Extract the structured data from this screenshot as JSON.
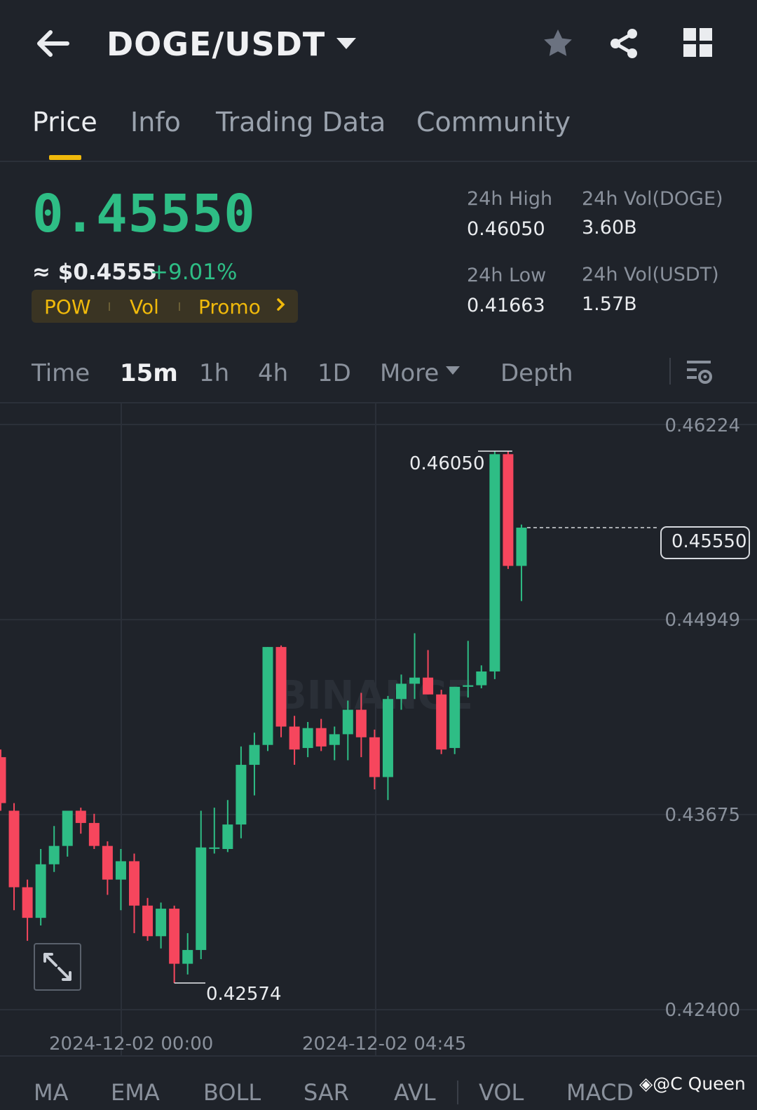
{
  "header": {
    "pair": "DOGE/USDT",
    "icons": [
      "back-arrow-icon",
      "dropdown-caret-icon",
      "star-icon",
      "share-icon",
      "grid-icon"
    ]
  },
  "tabs": [
    {
      "label": "Price",
      "active": true
    },
    {
      "label": "Info",
      "active": false
    },
    {
      "label": "Trading Data",
      "active": false
    },
    {
      "label": "Community",
      "active": false
    }
  ],
  "ticker": {
    "last_price": "0.45550",
    "approx_usd": "≈ $0.4555",
    "change_pct": "+9.01%",
    "tags": [
      "POW",
      "Vol",
      "Promo"
    ],
    "high_label": "24h High",
    "high_value": "0.46050",
    "low_label": "24h Low",
    "low_value": "0.41663",
    "vol_base_label": "24h Vol(DOGE)",
    "vol_base_value": "3.60B",
    "vol_quote_label": "24h Vol(USDT)",
    "vol_quote_value": "1.57B",
    "up_color": "#2ebd85",
    "down_color": "#f6465d",
    "accent_color": "#f0b90b"
  },
  "intervals": {
    "items": [
      "Time",
      "15m",
      "1h",
      "4h",
      "1D"
    ],
    "active": "15m",
    "more_label": "More",
    "depth_label": "Depth"
  },
  "chart_data": {
    "type": "candlestick",
    "y_ticks": [
      "0.46224",
      "0.44949",
      "0.43675",
      "0.42400"
    ],
    "ylim": [
      0.424,
      0.46224
    ],
    "x_ticks": [
      "2024-12-02 00:00",
      "2024-12-02 04:45"
    ],
    "high_marker": "0.46050",
    "low_marker": "0.42574",
    "current_price": "0.45550",
    "watermark": "BINANCE",
    "candles": [
      {
        "o": 0.4405,
        "h": 0.441,
        "c": 0.4375,
        "l": 0.437
      },
      {
        "o": 0.437,
        "h": 0.4375,
        "c": 0.432,
        "l": 0.4305
      },
      {
        "o": 0.432,
        "h": 0.4325,
        "c": 0.43,
        "l": 0.4285
      },
      {
        "o": 0.43,
        "h": 0.4345,
        "c": 0.4335,
        "l": 0.4295
      },
      {
        "o": 0.4335,
        "h": 0.436,
        "c": 0.4347,
        "l": 0.433
      },
      {
        "o": 0.4347,
        "h": 0.437,
        "c": 0.437,
        "l": 0.434
      },
      {
        "o": 0.437,
        "h": 0.4372,
        "c": 0.4362,
        "l": 0.4355
      },
      {
        "o": 0.4362,
        "h": 0.4368,
        "c": 0.4347,
        "l": 0.4345
      },
      {
        "o": 0.4347,
        "h": 0.435,
        "c": 0.4325,
        "l": 0.4315
      },
      {
        "o": 0.4325,
        "h": 0.4345,
        "c": 0.4337,
        "l": 0.4305
      },
      {
        "o": 0.4337,
        "h": 0.4342,
        "c": 0.4308,
        "l": 0.429
      },
      {
        "o": 0.4308,
        "h": 0.4313,
        "c": 0.4288,
        "l": 0.4285
      },
      {
        "o": 0.4288,
        "h": 0.431,
        "c": 0.4306,
        "l": 0.428
      },
      {
        "o": 0.4306,
        "h": 0.4308,
        "c": 0.427,
        "l": 0.42574
      },
      {
        "o": 0.427,
        "h": 0.429,
        "c": 0.4279,
        "l": 0.4263
      },
      {
        "o": 0.4279,
        "h": 0.437,
        "c": 0.4346,
        "l": 0.4273
      },
      {
        "o": 0.4346,
        "h": 0.4372,
        "c": 0.4346,
        "l": 0.4342
      },
      {
        "o": 0.4345,
        "h": 0.4377,
        "c": 0.4361,
        "l": 0.4343
      },
      {
        "o": 0.4361,
        "h": 0.4412,
        "c": 0.44,
        "l": 0.4352
      },
      {
        "o": 0.44,
        "h": 0.4421,
        "c": 0.4413,
        "l": 0.438
      },
      {
        "o": 0.4413,
        "h": 0.4477,
        "c": 0.4477,
        "l": 0.4409
      },
      {
        "o": 0.4477,
        "h": 0.4478,
        "c": 0.4425,
        "l": 0.4418
      },
      {
        "o": 0.4425,
        "h": 0.4432,
        "c": 0.441,
        "l": 0.44
      },
      {
        "o": 0.4411,
        "h": 0.4428,
        "c": 0.4424,
        "l": 0.4405
      },
      {
        "o": 0.4424,
        "h": 0.443,
        "c": 0.4412,
        "l": 0.4409
      },
      {
        "o": 0.4413,
        "h": 0.4425,
        "c": 0.442,
        "l": 0.4403
      },
      {
        "o": 0.442,
        "h": 0.4442,
        "c": 0.4436,
        "l": 0.4403
      },
      {
        "o": 0.4436,
        "h": 0.4447,
        "c": 0.4418,
        "l": 0.4405
      },
      {
        "o": 0.4418,
        "h": 0.4423,
        "c": 0.4392,
        "l": 0.4384
      },
      {
        "o": 0.4392,
        "h": 0.4445,
        "c": 0.4443,
        "l": 0.4377
      },
      {
        "o": 0.4443,
        "h": 0.4459,
        "c": 0.4453,
        "l": 0.4436
      },
      {
        "o": 0.4453,
        "h": 0.4486,
        "c": 0.4457,
        "l": 0.4443
      },
      {
        "o": 0.4457,
        "h": 0.4475,
        "c": 0.4446,
        "l": 0.4446
      },
      {
        "o": 0.4446,
        "h": 0.4449,
        "c": 0.441,
        "l": 0.4407
      },
      {
        "o": 0.4411,
        "h": 0.4451,
        "c": 0.4451,
        "l": 0.4407
      },
      {
        "o": 0.4451,
        "h": 0.4481,
        "c": 0.4452,
        "l": 0.4444
      },
      {
        "o": 0.4452,
        "h": 0.4465,
        "c": 0.4461,
        "l": 0.445
      },
      {
        "o": 0.4461,
        "h": 0.4605,
        "c": 0.4603,
        "l": 0.4456
      },
      {
        "o": 0.4603,
        "h": 0.4605,
        "c": 0.453,
        "l": 0.4528
      },
      {
        "o": 0.453,
        "h": 0.4557,
        "c": 0.4555,
        "l": 0.4507
      }
    ]
  },
  "indicators": [
    "MA",
    "EMA",
    "BOLL",
    "SAR",
    "AVL",
    "VOL",
    "MACD"
  ],
  "watermark_user": "@C Queen"
}
